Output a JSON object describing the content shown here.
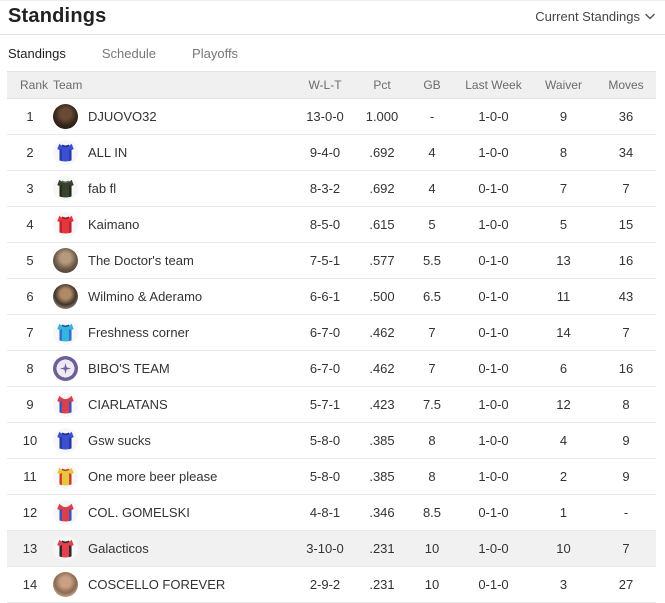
{
  "header": {
    "title": "Standings",
    "dropdown_label": "Current Standings"
  },
  "tabs": [
    {
      "label": "Standings",
      "active": true
    },
    {
      "label": "Schedule",
      "active": false
    },
    {
      "label": "Playoffs",
      "active": false
    }
  ],
  "table": {
    "columns": [
      "Rank",
      "Team",
      "W-L-T",
      "Pct",
      "GB",
      "Last Week",
      "Waiver",
      "Moves"
    ],
    "rows": [
      {
        "rank": "1",
        "team": "DJUOVO32",
        "wlt": "13-0-0",
        "pct": "1.000",
        "gb": "-",
        "last_week": "1-0-0",
        "waiver": "9",
        "moves": "36",
        "highlighted": false,
        "avatar": {
          "type": "photo",
          "name": "manager-photo-avatar",
          "colors": [
            "#6b4a35",
            "#38281d",
            "#171210"
          ]
        }
      },
      {
        "rank": "2",
        "team": "ALL IN",
        "wlt": "9-4-0",
        "pct": ".692",
        "gb": "4",
        "last_week": "1-0-0",
        "waiver": "8",
        "moves": "34",
        "highlighted": false,
        "avatar": {
          "type": "jersey",
          "name": "blue-jersey-avatar",
          "body": "#3a4fd4",
          "accent": "#2a38a8",
          "neck": "#1e2a86"
        }
      },
      {
        "rank": "3",
        "team": "fab fl",
        "wlt": "8-3-2",
        "pct": ".692",
        "gb": "4",
        "last_week": "0-1-0",
        "waiver": "7",
        "moves": "7",
        "highlighted": false,
        "avatar": {
          "type": "jersey",
          "name": "dark-green-jersey-avatar",
          "body": "#37422f",
          "accent": "#222a1e",
          "neck": "#5a6a52"
        }
      },
      {
        "rank": "4",
        "team": "Kaimano",
        "wlt": "8-5-0",
        "pct": ".615",
        "gb": "5",
        "last_week": "1-0-0",
        "waiver": "5",
        "moves": "15",
        "highlighted": false,
        "avatar": {
          "type": "jersey",
          "name": "red-jersey-avatar",
          "body": "#e4363f",
          "accent": "#b7242e",
          "neck": "#8e1b23"
        }
      },
      {
        "rank": "5",
        "team": "The Doctor's team",
        "wlt": "7-5-1",
        "pct": ".577",
        "gb": "5.5",
        "last_week": "0-1-0",
        "waiver": "13",
        "moves": "16",
        "highlighted": false,
        "avatar": {
          "type": "photo",
          "name": "manager-photo-avatar",
          "colors": [
            "#b59a7e",
            "#6e5a47",
            "#3c3127"
          ]
        }
      },
      {
        "rank": "6",
        "team": "Wilmino & Aderamo",
        "wlt": "6-6-1",
        "pct": ".500",
        "gb": "6.5",
        "last_week": "0-1-0",
        "waiver": "11",
        "moves": "43",
        "highlighted": false,
        "avatar": {
          "type": "photo",
          "name": "manager-photo-avatar",
          "colors": [
            "#b08a66",
            "#40332a",
            "#d8d6cc"
          ]
        }
      },
      {
        "rank": "7",
        "team": "Freshness corner",
        "wlt": "6-7-0",
        "pct": ".462",
        "gb": "7",
        "last_week": "0-1-0",
        "waiver": "14",
        "moves": "7",
        "highlighted": false,
        "avatar": {
          "type": "jersey",
          "name": "teal-jersey-avatar",
          "body": "#35b5dd",
          "accent": "#2f6fd0",
          "neck": "#1d4fa8"
        }
      },
      {
        "rank": "8",
        "team": "BIBO'S TEAM",
        "wlt": "6-7-0",
        "pct": ".462",
        "gb": "7",
        "last_week": "0-1-0",
        "waiver": "6",
        "moves": "16",
        "highlighted": false,
        "avatar": {
          "type": "badge",
          "name": "purple-badge-avatar",
          "ring": "#6f5f96",
          "inner": "#ece9f2"
        }
      },
      {
        "rank": "9",
        "team": "CIARLATANS",
        "wlt": "5-7-1",
        "pct": ".423",
        "gb": "7.5",
        "last_week": "1-0-0",
        "waiver": "12",
        "moves": "8",
        "highlighted": false,
        "avatar": {
          "type": "jersey",
          "name": "red-blue-jersey-avatar",
          "body": "#d8414b",
          "accent": "#3c52c4",
          "neck": "#f0f0f0"
        }
      },
      {
        "rank": "10",
        "team": "Gsw sucks",
        "wlt": "5-8-0",
        "pct": ".385",
        "gb": "8",
        "last_week": "1-0-0",
        "waiver": "4",
        "moves": "9",
        "highlighted": false,
        "avatar": {
          "type": "jersey",
          "name": "blue-jersey-avatar",
          "body": "#3a50d0",
          "accent": "#27379e",
          "neck": "#1c2a7e"
        }
      },
      {
        "rank": "11",
        "team": "One more beer please",
        "wlt": "5-8-0",
        "pct": ".385",
        "gb": "8",
        "last_week": "1-0-0",
        "waiver": "2",
        "moves": "9",
        "highlighted": false,
        "avatar": {
          "type": "jersey",
          "name": "yellow-jersey-avatar",
          "body": "#e5c83d",
          "accent": "#cf3a2e",
          "neck": "#cf3a2e"
        }
      },
      {
        "rank": "12",
        "team": "COL. GOMELSKI",
        "wlt": "4-8-1",
        "pct": ".346",
        "gb": "8.5",
        "last_week": "0-1-0",
        "waiver": "1",
        "moves": "-",
        "highlighted": false,
        "avatar": {
          "type": "jersey",
          "name": "red-blue-jersey-avatar",
          "body": "#d8414b",
          "accent": "#3c52c4",
          "neck": "#f0f0f0"
        }
      },
      {
        "rank": "13",
        "team": "Galacticos",
        "wlt": "3-10-0",
        "pct": ".231",
        "gb": "10",
        "last_week": "1-0-0",
        "waiver": "10",
        "moves": "7",
        "highlighted": true,
        "avatar": {
          "type": "jersey",
          "name": "red-black-jersey-avatar",
          "body": "#e4404e",
          "accent": "#2a2a2a",
          "neck": "#2a2a2a"
        }
      },
      {
        "rank": "14",
        "team": "COSCELLO FOREVER",
        "wlt": "2-9-2",
        "pct": ".231",
        "gb": "10",
        "last_week": "0-1-0",
        "waiver": "3",
        "moves": "27",
        "highlighted": false,
        "avatar": {
          "type": "photo",
          "name": "manager-photo-avatar",
          "colors": [
            "#c9a083",
            "#8a6a50",
            "#e9e3d6"
          ]
        }
      }
    ]
  },
  "colors": {
    "header_row_bg": "#f0f0f0",
    "row_border": "#e8e8e8",
    "highlight_row_bg": "#f1f1f1",
    "text_primary": "#333333",
    "text_muted": "#767676",
    "title_text": "#212121"
  }
}
